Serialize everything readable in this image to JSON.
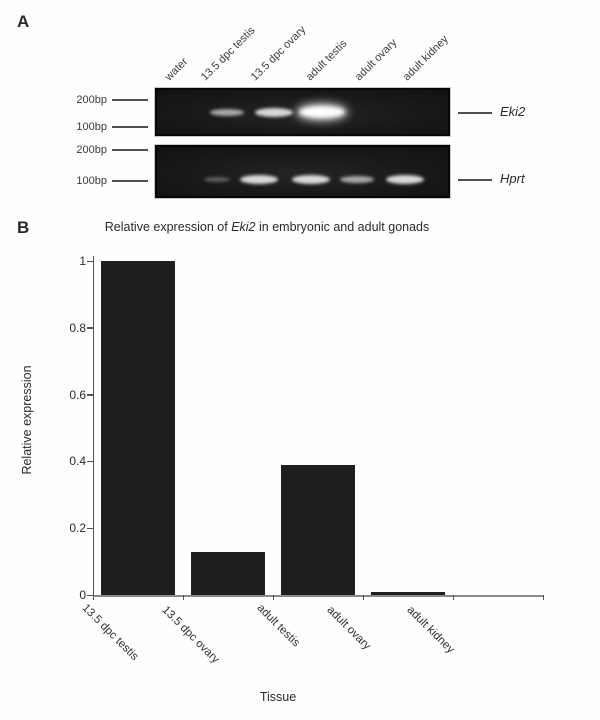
{
  "panel_a": {
    "label": "A",
    "lane_labels": [
      "water",
      "13.5 dpc testis",
      "13.5 dpc ovary",
      "adult testis",
      "adult ovary",
      "adult kidney"
    ],
    "gels": [
      {
        "gene": "Eki2",
        "markers": [
          "200bp",
          "100bp"
        ],
        "bands": [
          {
            "lane": 1,
            "intensity": "medium"
          },
          {
            "lane": 2,
            "intensity": "strong"
          },
          {
            "lane": 3,
            "intensity": "very_strong"
          }
        ]
      },
      {
        "gene": "Hprt",
        "markers": [
          "200bp",
          "100bp"
        ],
        "bands": [
          {
            "lane": 1,
            "intensity": "faint"
          },
          {
            "lane": 2,
            "intensity": "strong"
          },
          {
            "lane": 3,
            "intensity": "strong"
          },
          {
            "lane": 4,
            "intensity": "medium"
          },
          {
            "lane": 5,
            "intensity": "strong"
          }
        ]
      }
    ]
  },
  "panel_b": {
    "label": "B",
    "title_prefix": "Relative expression of ",
    "title_gene": "Eki2",
    "title_suffix": " in embryonic and adult gonads",
    "ylabel": "Relative expression",
    "xlabel": "Tissue"
  },
  "chart_data": {
    "type": "bar",
    "title": "Relative expression of Eki2 in embryonic and adult gonads",
    "categories": [
      "13.5 dpc testis",
      "13.5 dpc ovary",
      "adult testis",
      "adult ovary",
      "adult kidney"
    ],
    "values": [
      1.0,
      0.13,
      0.39,
      0.008,
      0
    ],
    "xlabel": "Tissue",
    "ylabel": "Relative expression",
    "ylim": [
      0,
      1
    ],
    "yticks": [
      0,
      0.2,
      0.4,
      0.6,
      0.8,
      1
    ],
    "bar_color": "#1f1f1f",
    "grid": false,
    "legend": false
  }
}
